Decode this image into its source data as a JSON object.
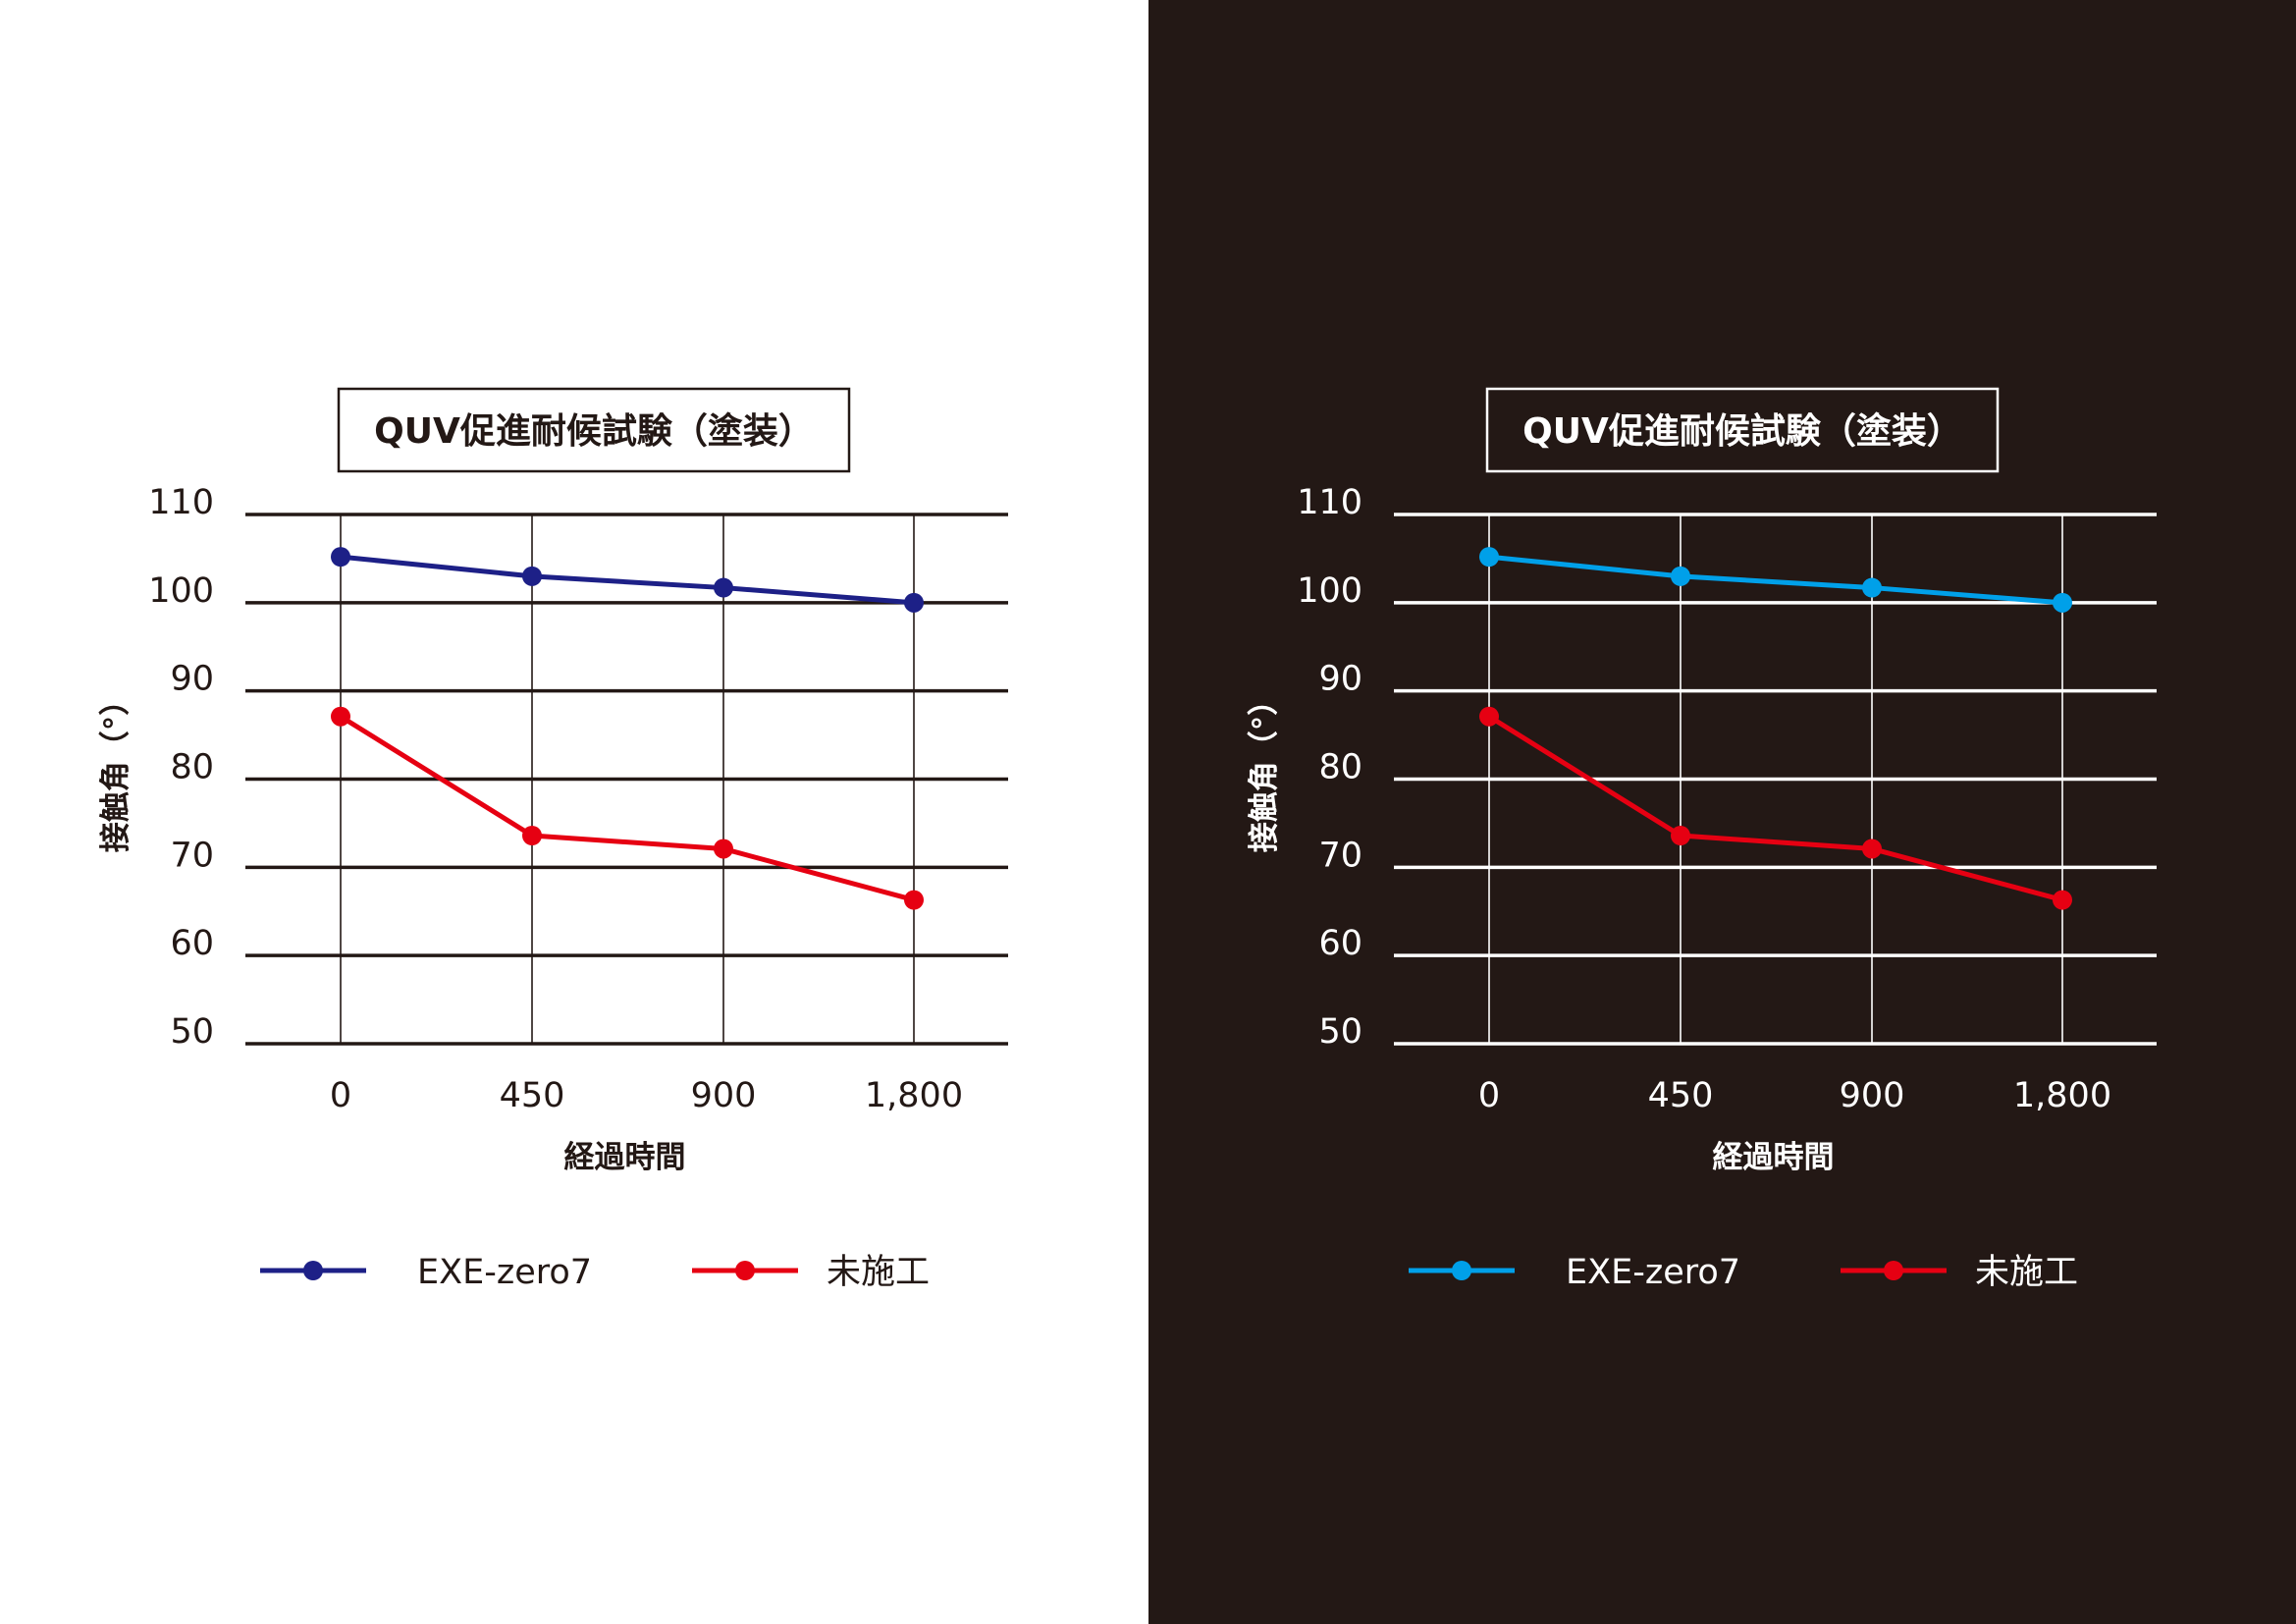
{
  "chart_data": [
    {
      "type": "line",
      "title": "QUV促進耐候試験（塗装）",
      "xlabel": "経過時間",
      "ylabel": "接触角（°）",
      "categories": [
        "0",
        "450",
        "900",
        "1,800"
      ],
      "yticks": [
        "50",
        "60",
        "70",
        "80",
        "90",
        "100",
        "110"
      ],
      "ylim": [
        50,
        110
      ],
      "grid": true,
      "legend_position": "bottom",
      "theme": {
        "background": "#ffffff",
        "ink": "#231815",
        "grid": "#231815"
      },
      "series": [
        {
          "name": "EXE-zero7",
          "color": "#1d2087",
          "values": [
            105.2,
            103.0,
            101.7,
            100.0
          ]
        },
        {
          "name": "未施工",
          "color": "#e60012",
          "values": [
            87.1,
            73.6,
            72.1,
            66.3
          ]
        }
      ]
    },
    {
      "type": "line",
      "title": "QUV促進耐候試験（塗装）",
      "xlabel": "経過時間",
      "ylabel": "接触角（°）",
      "categories": [
        "0",
        "450",
        "900",
        "1,800"
      ],
      "yticks": [
        "50",
        "60",
        "70",
        "80",
        "90",
        "100",
        "110"
      ],
      "ylim": [
        50,
        110
      ],
      "grid": true,
      "legend_position": "bottom",
      "theme": {
        "background": "#231815",
        "ink": "#ffffff",
        "grid": "#ffffff"
      },
      "series": [
        {
          "name": "EXE-zero7",
          "color": "#00a0e9",
          "values": [
            105.2,
            103.0,
            101.7,
            100.0
          ]
        },
        {
          "name": "未施工",
          "color": "#e60012",
          "values": [
            87.1,
            73.6,
            72.1,
            66.3
          ]
        }
      ]
    }
  ]
}
